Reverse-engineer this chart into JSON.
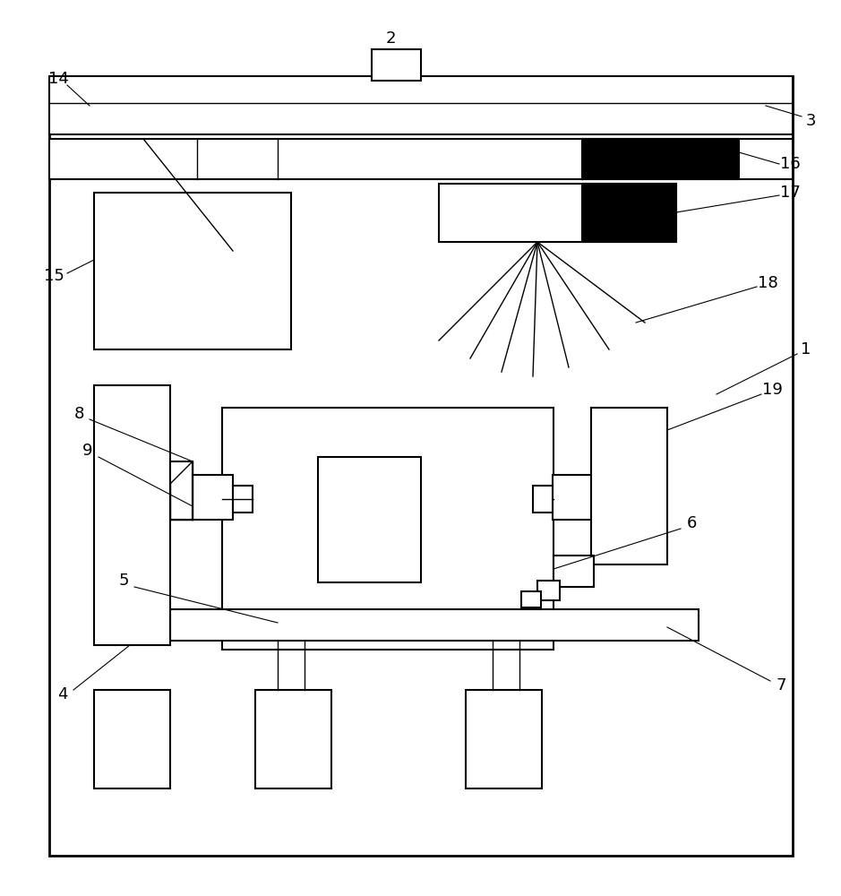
{
  "fig_width": 9.39,
  "fig_height": 10.0,
  "dpi": 100,
  "bg_color": "#ffffff",
  "lc": "#000000",
  "lw": 1.5,
  "tlw": 1.0
}
